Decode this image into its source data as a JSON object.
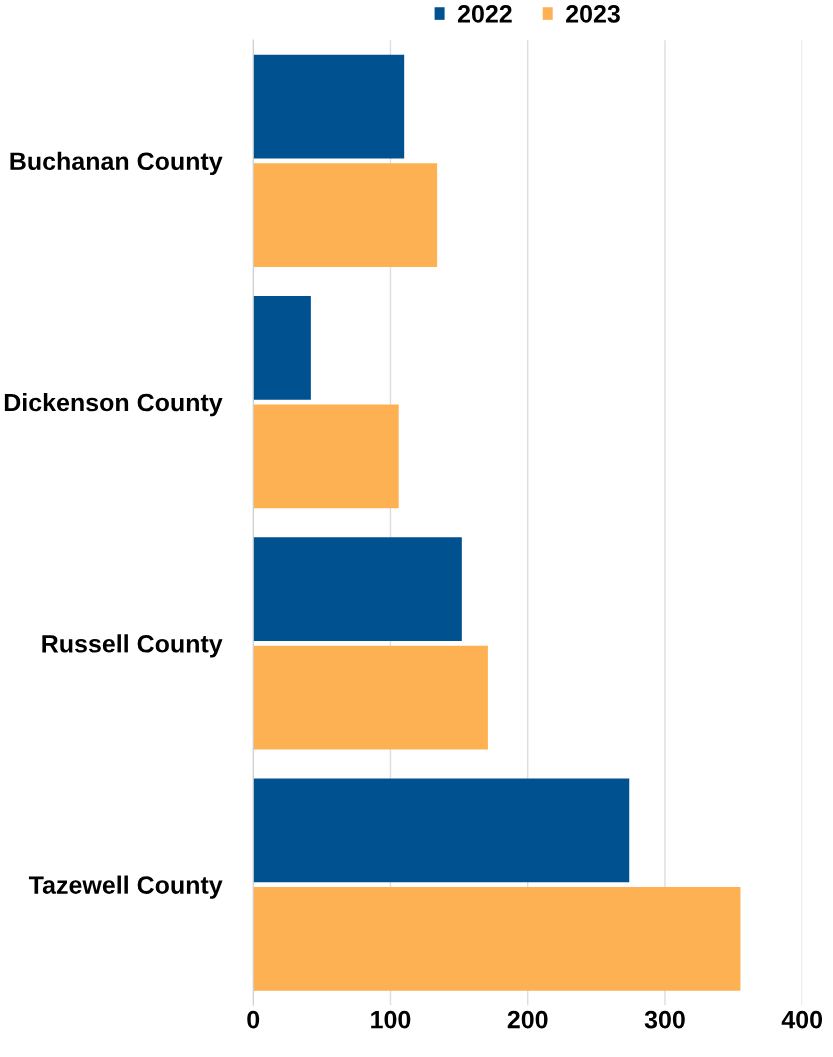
{
  "chart_data": {
    "type": "bar",
    "orientation": "horizontal",
    "categories": [
      "Buchanan County",
      "Dickenson County",
      "Russell County",
      "Tazewell County"
    ],
    "series": [
      {
        "name": "2022",
        "color": "#00518f",
        "values": [
          110,
          42,
          152,
          274
        ]
      },
      {
        "name": "2023",
        "color": "#fdb152",
        "values": [
          134,
          106,
          171,
          355
        ]
      }
    ],
    "xlim": [
      0,
      400
    ],
    "xticks": [
      0,
      100,
      200,
      300,
      400
    ],
    "grid": "x",
    "legend": "top"
  }
}
